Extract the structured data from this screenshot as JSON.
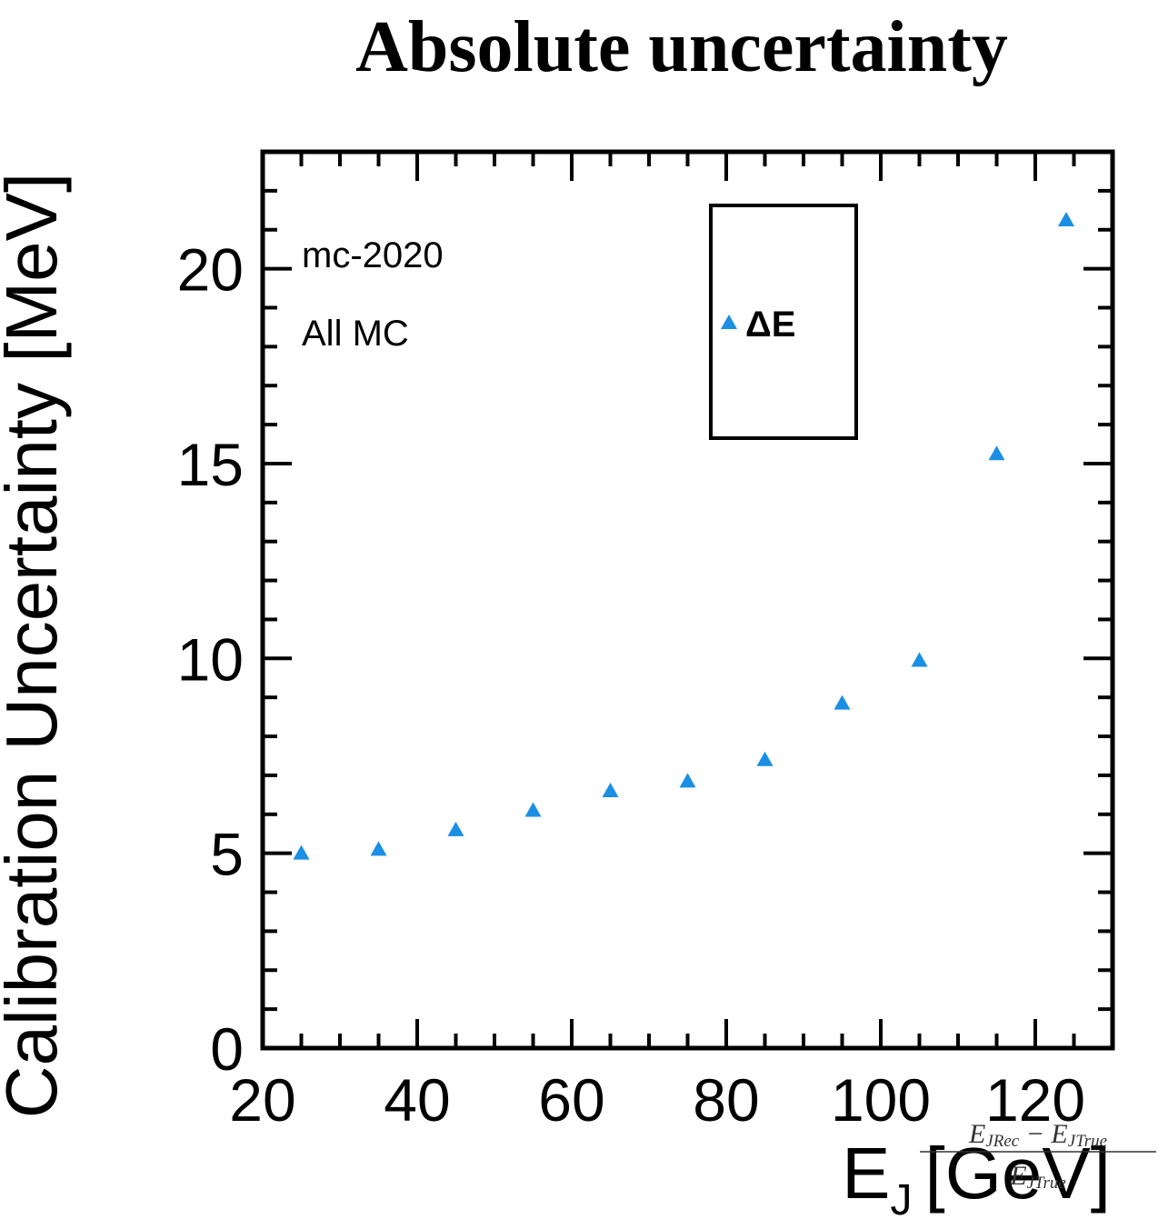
{
  "chart_data": {
    "type": "scatter",
    "title": "Absolute uncertainty",
    "xlabel": "E",
    "xlabel_sub": "J",
    "xlabel_unit": "[GeV]",
    "ylabel": "Calibration Uncertainty [MeV]",
    "xlim": [
      20,
      130
    ],
    "ylim": [
      0,
      23
    ],
    "xticks": [
      20,
      40,
      60,
      80,
      100,
      120
    ],
    "yticks": [
      0,
      5,
      10,
      15,
      20
    ],
    "grid": false,
    "marker_color": "#1a8fe3",
    "annotations": [
      "mc-2020",
      "All MC"
    ],
    "legend": {
      "placement": "top-center",
      "entries": [
        "ΔE"
      ]
    },
    "overlay_formula": {
      "numerator": "E_{JRec} − E_{JTrue}",
      "numerator_parts": [
        "E",
        "JRec",
        " − E",
        "JTrue"
      ],
      "denominator_parts": [
        "E",
        "JTrue"
      ]
    },
    "series": [
      {
        "name": "ΔE",
        "x": [
          25,
          35,
          45,
          55,
          65,
          75,
          85,
          95,
          105,
          115,
          124
        ],
        "y": [
          5.0,
          5.1,
          5.6,
          6.1,
          6.6,
          6.85,
          7.4,
          8.85,
          9.95,
          15.25,
          21.25
        ]
      }
    ]
  }
}
